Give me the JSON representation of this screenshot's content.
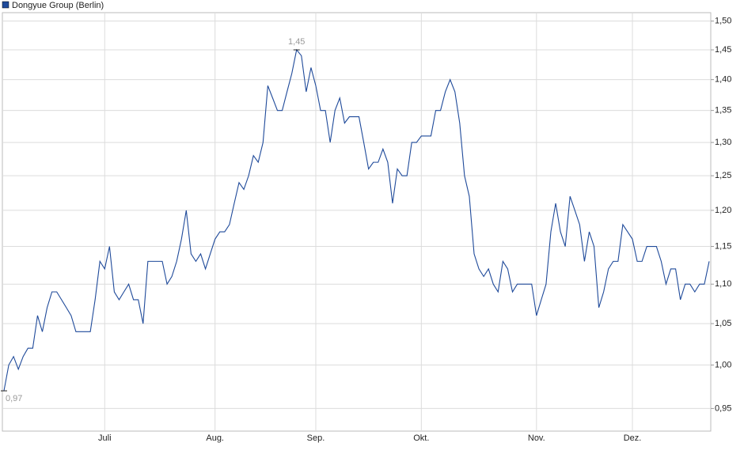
{
  "chart_data": {
    "type": "line",
    "log_scale": true,
    "grid": true,
    "legend": "top-left",
    "categories": [
      null,
      null,
      null,
      null,
      null,
      null,
      null,
      null,
      null,
      null,
      null,
      null,
      null,
      null,
      null,
      null,
      null,
      null,
      null,
      null,
      null,
      "Juli",
      null,
      null,
      null,
      null,
      null,
      null,
      null,
      null,
      null,
      null,
      null,
      null,
      null,
      null,
      null,
      null,
      null,
      null,
      null,
      null,
      null,
      null,
      "Aug.",
      null,
      null,
      null,
      null,
      null,
      null,
      null,
      null,
      null,
      null,
      null,
      null,
      null,
      null,
      null,
      null,
      null,
      null,
      null,
      null,
      "Sep.",
      null,
      null,
      null,
      null,
      null,
      null,
      null,
      null,
      null,
      null,
      null,
      null,
      null,
      null,
      null,
      null,
      null,
      null,
      null,
      null,
      null,
      "Okt.",
      null,
      null,
      null,
      null,
      null,
      null,
      null,
      null,
      null,
      null,
      null,
      null,
      null,
      null,
      null,
      null,
      null,
      null,
      null,
      null,
      null,
      null,
      null,
      "Nov.",
      null,
      null,
      null,
      null,
      null,
      null,
      null,
      null,
      null,
      null,
      null,
      null,
      null,
      null,
      null,
      null,
      null,
      null,
      null,
      "Dez.",
      null,
      null,
      null,
      null,
      null,
      null,
      null,
      null,
      null,
      null,
      null,
      null,
      null,
      null,
      null,
      null
    ],
    "series": [
      {
        "name": "Dongyue Group (Berlin)",
        "color": "#1f4a9a",
        "values": [
          0.97,
          1.0,
          1.01,
          0.995,
          1.01,
          1.02,
          1.02,
          1.06,
          1.04,
          1.07,
          1.09,
          1.09,
          1.08,
          1.07,
          1.06,
          1.04,
          1.04,
          1.04,
          1.04,
          1.08,
          1.13,
          1.12,
          1.15,
          1.09,
          1.08,
          1.09,
          1.1,
          1.08,
          1.08,
          1.05,
          1.13,
          1.13,
          1.13,
          1.13,
          1.1,
          1.11,
          1.13,
          1.16,
          1.2,
          1.14,
          1.13,
          1.14,
          1.12,
          1.14,
          1.16,
          1.17,
          1.17,
          1.18,
          1.21,
          1.24,
          1.23,
          1.25,
          1.28,
          1.27,
          1.3,
          1.39,
          1.37,
          1.35,
          1.35,
          1.38,
          1.41,
          1.45,
          1.44,
          1.38,
          1.42,
          1.39,
          1.35,
          1.35,
          1.3,
          1.35,
          1.37,
          1.33,
          1.34,
          1.34,
          1.34,
          1.3,
          1.26,
          1.27,
          1.27,
          1.29,
          1.27,
          1.21,
          1.26,
          1.25,
          1.25,
          1.3,
          1.3,
          1.31,
          1.31,
          1.31,
          1.35,
          1.35,
          1.38,
          1.4,
          1.38,
          1.33,
          1.25,
          1.22,
          1.14,
          1.12,
          1.11,
          1.12,
          1.1,
          1.09,
          1.13,
          1.12,
          1.09,
          1.1,
          1.1,
          1.1,
          1.1,
          1.06,
          1.08,
          1.1,
          1.17,
          1.21,
          1.17,
          1.15,
          1.22,
          1.2,
          1.18,
          1.13,
          1.17,
          1.15,
          1.07,
          1.09,
          1.12,
          1.13,
          1.13,
          1.18,
          1.17,
          1.16,
          1.13,
          1.13,
          1.15,
          1.15,
          1.15,
          1.13,
          1.1,
          1.12,
          1.12,
          1.08,
          1.1,
          1.1,
          1.09,
          1.1,
          1.1,
          1.13
        ],
        "value_labels": [
          "0,97",
          null,
          null,
          null,
          null,
          null,
          null,
          null,
          null,
          null,
          null,
          null,
          null,
          null,
          null,
          null,
          null,
          null,
          null,
          null,
          null,
          null,
          null,
          null,
          null,
          null,
          null,
          null,
          null,
          null,
          null,
          null,
          null,
          null,
          null,
          null,
          null,
          null,
          null,
          null,
          null,
          null,
          null,
          null,
          null,
          null,
          null,
          null,
          null,
          null,
          null,
          null,
          null,
          null,
          null,
          null,
          null,
          null,
          null,
          null,
          null,
          "1,45",
          null,
          null,
          null,
          null,
          null,
          null,
          null,
          null,
          null,
          null,
          null,
          null,
          null,
          null,
          null,
          null,
          null,
          null,
          null,
          null,
          null,
          null,
          null,
          null,
          null,
          null,
          null,
          null,
          null,
          null,
          null,
          null,
          null,
          null,
          null,
          null,
          null,
          null,
          null,
          null,
          null,
          null,
          null,
          null,
          null,
          null,
          null,
          null,
          null,
          null,
          null,
          null,
          null,
          null,
          null,
          null,
          null,
          null,
          null,
          null,
          null,
          null,
          null,
          null,
          null,
          null,
          null,
          null,
          null,
          null,
          null,
          null,
          null,
          null,
          null,
          null,
          null,
          null,
          null,
          null,
          null,
          null,
          null,
          null,
          null,
          null
        ]
      }
    ],
    "ylim": [
      0.925,
      1.515
    ],
    "yticks": [
      {
        "value": 0.95,
        "label": "0,95"
      },
      {
        "value": 1.0,
        "label": "1,00"
      },
      {
        "value": 1.05,
        "label": "1,05"
      },
      {
        "value": 1.1,
        "label": "1,10"
      },
      {
        "value": 1.15,
        "label": "1,15"
      },
      {
        "value": 1.2,
        "label": "1,20"
      },
      {
        "value": 1.25,
        "label": "1,25"
      },
      {
        "value": 1.3,
        "label": "1,30"
      },
      {
        "value": 1.35,
        "label": "1,35"
      },
      {
        "value": 1.4,
        "label": "1,40"
      },
      {
        "value": 1.45,
        "label": "1,45"
      },
      {
        "value": 1.5,
        "label": "1,50"
      }
    ]
  }
}
